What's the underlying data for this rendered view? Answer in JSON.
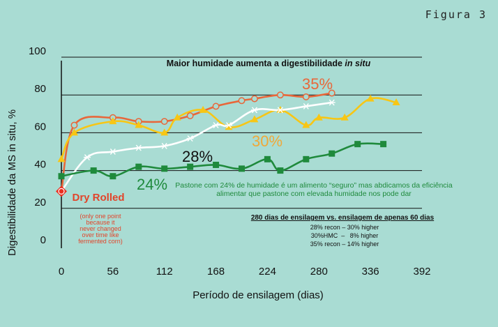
{
  "chart_data": {
    "type": "line",
    "figure_label": "Figura 3",
    "title": "Maior humidade aumenta a digestibilidade",
    "title_italic": "in situ",
    "ylabel": "Digestibilidade da MS in situ, %",
    "xlabel": "Período de ensilagem (dias)",
    "xlim": [
      0,
      392
    ],
    "ylim": [
      0,
      100
    ],
    "x_ticks": [
      0,
      56,
      112,
      168,
      224,
      280,
      336,
      392
    ],
    "y_ticks": [
      0,
      20,
      40,
      60,
      80,
      100
    ],
    "gridlines_y": [
      0,
      20,
      40,
      60,
      80,
      100
    ],
    "series": [
      {
        "name": "35%",
        "color": "#e8673a",
        "marker": "open-circle",
        "x": [
          0,
          14,
          56,
          84,
          112,
          140,
          168,
          196,
          210,
          238,
          266,
          294
        ],
        "y": [
          29,
          64,
          68,
          66,
          66,
          69,
          74,
          77,
          78,
          80,
          79,
          81
        ]
      },
      {
        "name": "30%",
        "color": "#f7c615",
        "marker": "triangle",
        "x": [
          0,
          14,
          56,
          84,
          112,
          126,
          154,
          182,
          210,
          238,
          266,
          280,
          308,
          336,
          364
        ],
        "y": [
          46,
          60,
          66,
          64,
          60,
          68,
          72,
          63,
          67,
          72,
          64,
          68,
          68,
          78,
          76
        ]
      },
      {
        "name": "28%",
        "color": "#ffffff",
        "marker": "asterisk",
        "x": [
          0,
          28,
          56,
          84,
          112,
          140,
          168,
          182,
          210,
          238,
          266,
          294
        ],
        "y": [
          29,
          47,
          50,
          52,
          53,
          57,
          64,
          64,
          72,
          72,
          74,
          76
        ]
      },
      {
        "name": "24%",
        "color": "#1f8a3c",
        "marker": "square",
        "x": [
          0,
          35,
          56,
          84,
          112,
          140,
          168,
          196,
          224,
          238,
          266,
          294,
          322,
          350
        ],
        "y": [
          37,
          40,
          37,
          42,
          41,
          42,
          43,
          41,
          46,
          40,
          46,
          49,
          54,
          54
        ]
      }
    ],
    "dry_rolled": {
      "x": 0,
      "y": 29,
      "color": "#ea2e1f",
      "label": "Dry Rolled",
      "note_lines": [
        "(only one point",
        "because it",
        "never changed",
        "over time like",
        "fermented corn)"
      ]
    },
    "annotations": {
      "green_note_lines": [
        "Pastone com 24% de humidade é um alimento “seguro” mas abdicamos da eficiência",
        "alimentar que pastone com elevada humidade nos pode dar"
      ],
      "box_title": "280 dias de ensilagem vs. ensilagem de apenas 60 dias",
      "box_lines": [
        "28% recon – 30% higher",
        "30%HMC  –   8% higher",
        "35% recon – 14% higher"
      ]
    }
  }
}
